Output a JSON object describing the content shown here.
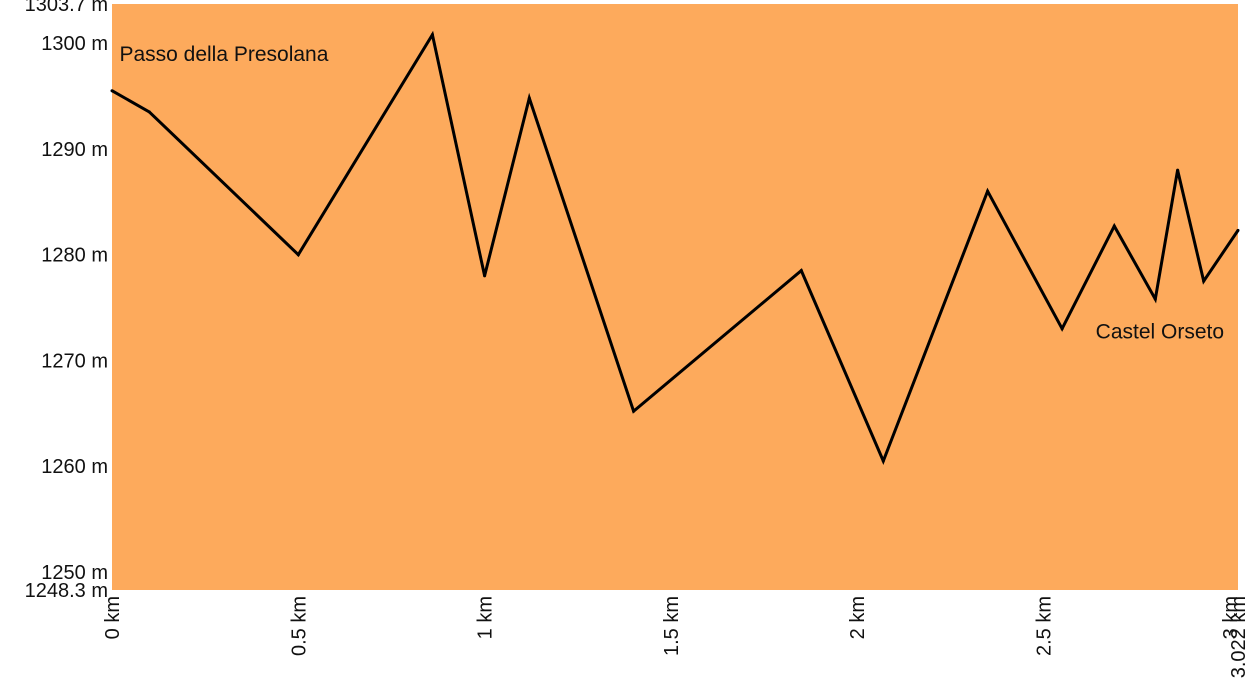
{
  "chart_data": {
    "type": "area",
    "title": "",
    "xlabel": "",
    "ylabel": "",
    "xlim": [
      0,
      3.022
    ],
    "ylim": [
      1248.3,
      1303.7
    ],
    "grid": false,
    "colors": {
      "fill": "#FDAA5C",
      "line": "#000000"
    },
    "x_ticks": [
      {
        "value": 0,
        "label": "0 km"
      },
      {
        "value": 0.5,
        "label": "0.5 km"
      },
      {
        "value": 1,
        "label": "1 km"
      },
      {
        "value": 1.5,
        "label": "1.5 km"
      },
      {
        "value": 2,
        "label": "2 km"
      },
      {
        "value": 2.5,
        "label": "2.5 km"
      },
      {
        "value": 3,
        "label": "3 km"
      },
      {
        "value": 3.022,
        "label": "3.022 km"
      }
    ],
    "y_ticks": [
      {
        "value": 1303.7,
        "label": "1303.7 m"
      },
      {
        "value": 1300,
        "label": "1300 m"
      },
      {
        "value": 1290,
        "label": "1290 m"
      },
      {
        "value": 1280,
        "label": "1280 m"
      },
      {
        "value": 1270,
        "label": "1270 m"
      },
      {
        "value": 1260,
        "label": "1260 m"
      },
      {
        "value": 1250,
        "label": "1250 m"
      },
      {
        "value": 1248.3,
        "label": "1248.3 m"
      }
    ],
    "series": [
      {
        "x": [
          0,
          0.1,
          0.5,
          0.86,
          1.0,
          1.12,
          1.4,
          1.85,
          2.07,
          2.35,
          2.55,
          2.69,
          2.8,
          2.86,
          2.93,
          3.022
        ],
        "values": [
          1295.5,
          1293.5,
          1280,
          1300.8,
          1278,
          1294.8,
          1265.2,
          1278.5,
          1260.5,
          1286,
          1273,
          1282.7,
          1275.8,
          1288,
          1277.5,
          1282.3
        ]
      }
    ],
    "annotations": [
      {
        "text": "Passo della Presolana",
        "x": 0.02,
        "y": 1298.3
      },
      {
        "text": "Castel Orseto",
        "x": 2.64,
        "y": 1272.1
      }
    ]
  }
}
